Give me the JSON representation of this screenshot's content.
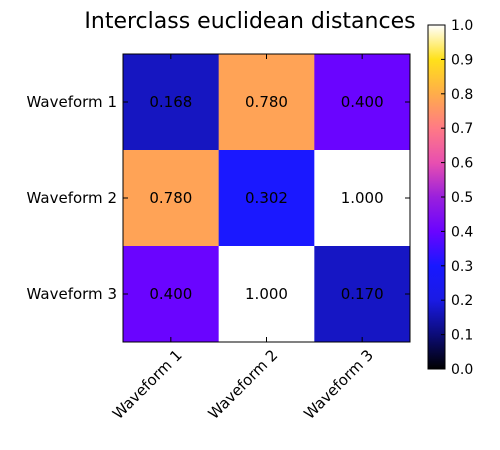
{
  "chart_data": {
    "type": "heatmap",
    "title": "Interclass euclidean distances",
    "row_labels": [
      "Waveform 1",
      "Waveform 2",
      "Waveform 3"
    ],
    "col_labels": [
      "Waveform 1",
      "Waveform 2",
      "Waveform 3"
    ],
    "values": [
      [
        0.168,
        0.78,
        0.4
      ],
      [
        0.78,
        0.302,
        1.0
      ],
      [
        0.4,
        1.0,
        0.17
      ]
    ],
    "cell_labels": [
      [
        "0.168",
        "0.780",
        "0.400"
      ],
      [
        "0.780",
        "0.302",
        "1.000"
      ],
      [
        "0.400",
        "1.000",
        "0.170"
      ]
    ],
    "colorbar": {
      "colormap": "gnuplot2",
      "range": [
        0.0,
        1.0
      ],
      "ticks": [
        "0.0",
        "0.1",
        "0.2",
        "0.3",
        "0.4",
        "0.5",
        "0.6",
        "0.7",
        "0.8",
        "0.9",
        "1.0"
      ]
    },
    "xtick_rotation_deg": -45,
    "grid": false
  }
}
